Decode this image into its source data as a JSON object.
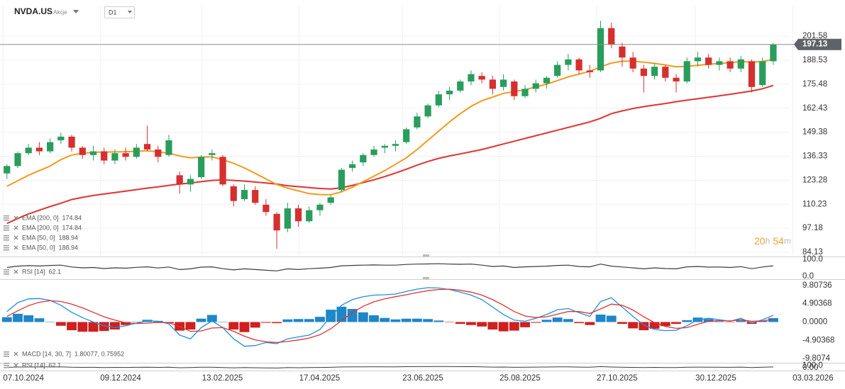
{
  "header": {
    "symbol": "NVDA.US",
    "asset_class": "Akcje",
    "interval": "D1"
  },
  "countdown": [
    "20",
    "h",
    "54",
    "m"
  ],
  "chart_data": [
    {
      "type": "candlestick",
      "x": [
        "07.10.2024",
        "14.10.2024",
        "21.10.2024",
        "28.10.2024",
        "04.11.2024",
        "11.11.2024",
        "18.11.2024",
        "25.11.2024",
        "02.12.2024",
        "09.12.2024",
        "16.12.2024",
        "23.12.2024",
        "30.12.2024",
        "06.01.2025",
        "13.01.2025",
        "20.01.2025",
        "27.01.2025",
        "03.02.2025",
        "10.02.2025",
        "17.02.2025",
        "24.02.2025",
        "03.03.2025",
        "10.03.2025",
        "17.03.2025",
        "24.03.2025",
        "31.03.2025",
        "07.04.2025",
        "14.04.2025",
        "21.04.2025",
        "28.04.2025",
        "05.05.2025",
        "12.05.2025",
        "19.05.2025",
        "26.05.2025",
        "02.06.2025",
        "09.06.2025",
        "16.06.2025",
        "23.06.2025",
        "30.06.2025",
        "07.07.2025",
        "14.07.2025",
        "21.07.2025",
        "28.07.2025",
        "04.08.2025",
        "11.08.2025",
        "18.08.2025",
        "25.08.2025",
        "01.09.2025",
        "08.09.2025",
        "15.09.2025",
        "22.09.2025",
        "29.09.2025",
        "06.10.2025",
        "13.10.2025",
        "20.10.2025",
        "27.10.2025",
        "03.11.2025",
        "10.11.2025",
        "17.11.2025",
        "24.11.2025",
        "01.12.2025",
        "08.12.2025",
        "15.12.2025",
        "22.12.2025",
        "29.12.2025",
        "05.01.2026",
        "12.01.2026",
        "19.01.2026",
        "26.01.2026",
        "02.02.2026",
        "09.02.2026",
        "16.02.2026"
      ],
      "open": [
        127,
        131,
        138,
        141,
        139,
        145,
        147,
        141,
        137,
        139,
        134,
        138,
        136,
        143,
        140,
        137,
        126,
        121,
        125,
        137,
        136,
        120,
        113,
        118,
        110,
        105,
        97,
        108,
        101,
        107,
        111,
        118,
        130,
        133,
        137,
        141,
        142,
        144,
        152,
        158,
        164,
        170,
        172,
        177,
        180,
        178,
        174,
        177,
        169,
        173,
        176,
        180,
        186,
        189,
        183,
        183,
        206,
        196,
        190,
        184,
        180,
        185,
        179,
        177,
        188,
        190,
        186,
        188,
        184,
        188,
        175,
        188
      ],
      "high": [
        132,
        139,
        143,
        144,
        146,
        149,
        148,
        142,
        142,
        141,
        140,
        141,
        143,
        153,
        142,
        148,
        128,
        126,
        137,
        140,
        137,
        121,
        121,
        120,
        113,
        106,
        111,
        110,
        109,
        111,
        115,
        130,
        134,
        138,
        142,
        143,
        145,
        152,
        160,
        165,
        172,
        174,
        178,
        183,
        182,
        180,
        181,
        178,
        175,
        178,
        180,
        188,
        192,
        190,
        186,
        210,
        209,
        198,
        193,
        186,
        187,
        186,
        181,
        190,
        193,
        192,
        190,
        190,
        191,
        189,
        190,
        198
      ],
      "low": [
        124,
        130,
        137,
        137,
        138,
        143,
        139,
        135,
        134,
        132,
        132,
        134,
        135,
        139,
        133,
        136,
        116,
        117,
        124,
        134,
        120,
        109,
        112,
        110,
        104,
        86,
        95,
        98,
        100,
        104,
        110,
        117,
        128,
        131,
        136,
        138,
        139,
        143,
        151,
        157,
        163,
        167,
        171,
        175,
        176,
        170,
        172,
        167,
        168,
        171,
        173,
        179,
        183,
        181,
        179,
        182,
        195,
        185,
        182,
        171,
        178,
        177,
        171,
        176,
        185,
        184,
        183,
        182,
        182,
        171,
        174,
        186
      ],
      "close": [
        131,
        138,
        141,
        139,
        144,
        147,
        141,
        137,
        139,
        134,
        138,
        136,
        141,
        140,
        136,
        145,
        121,
        124,
        136,
        138,
        121,
        112,
        118,
        111,
        106,
        96,
        108,
        101,
        107,
        110,
        114,
        129,
        132,
        137,
        140,
        142,
        143,
        151,
        158,
        164,
        170,
        172,
        177,
        181,
        178,
        173,
        178,
        169,
        173,
        176,
        179,
        186,
        189,
        183,
        182,
        206,
        197,
        190,
        184,
        180,
        185,
        179,
        177,
        188,
        190,
        186,
        188,
        184,
        189,
        174,
        188,
        197.13
      ],
      "up_color": "#2a9d5c",
      "down_color": "#d5302f",
      "lines": [
        {
          "name": "EMA [200, 0]",
          "color": "#e0332f",
          "values": [
            99.8,
            102.5,
            105,
            107,
            109,
            110.8,
            112.8,
            114,
            115,
            115.8,
            116.6,
            117.4,
            118.2,
            119,
            119.7,
            120.5,
            121.2,
            121.8,
            122.5,
            123.2,
            123.5,
            123.2,
            122.8,
            122.3,
            121.8,
            121.2,
            120.3,
            119.8,
            119.3,
            118.8,
            118.5,
            119.2,
            120.5,
            122,
            123.5,
            125.3,
            127.2,
            129.3,
            131.5,
            133.5,
            135.2,
            136.5,
            137.6,
            138.8,
            140,
            141.5,
            143,
            144.5,
            146,
            147.5,
            149,
            150.5,
            152,
            153.5,
            155,
            157,
            159.5,
            161,
            162.3,
            163.3,
            164.2,
            165,
            166,
            166.8,
            167.6,
            168.4,
            169.2,
            170,
            170.9,
            171.8,
            173,
            174.84
          ]
        },
        {
          "name": "EMA [50, 0]",
          "color": "#f39a1c",
          "values": [
            120,
            123,
            126,
            128.5,
            131,
            134.5,
            137,
            138,
            138.5,
            138.6,
            138.7,
            138.8,
            139,
            139.3,
            138.7,
            138,
            136.5,
            135.5,
            135.8,
            136,
            134.5,
            132.5,
            130,
            127,
            124,
            121,
            119,
            117.5,
            116,
            115.5,
            115.4,
            117,
            119.5,
            122.5,
            125.5,
            128.5,
            132,
            135.5,
            140,
            145,
            150,
            155,
            159.5,
            163.5,
            166.5,
            168.5,
            170.5,
            171.5,
            172.5,
            174,
            175.5,
            177.5,
            179.5,
            181,
            182.5,
            185,
            187,
            188,
            188,
            187.5,
            186.8,
            186,
            185,
            185.2,
            185.8,
            186.3,
            186.8,
            187.2,
            187.8,
            187.5,
            187.8,
            188.94
          ]
        }
      ],
      "xlim": [
        "05.10.2024",
        "06.04.2026"
      ],
      "xticks": [
        "07.10.2024",
        "09.12.2024",
        "13.02.2025",
        "17.04.2025",
        "23.06.2025",
        "25.08.2025",
        "27.10.2025",
        "30.12.2025",
        "03.03.2026"
      ],
      "ylim": [
        82.6,
        218.2
      ],
      "yticks": [
        201.58,
        188.53,
        175.48,
        162.43,
        149.38,
        136.33,
        123.28,
        110.23,
        97.18,
        84.13
      ],
      "grid": true
    },
    {
      "type": "line",
      "name": "RSI [14]",
      "color": "#3c3c3c",
      "values": [
        52,
        60,
        63,
        61,
        64,
        66,
        55,
        50,
        52,
        46,
        50,
        48,
        53,
        56,
        49,
        55,
        40,
        44,
        54,
        56,
        45,
        38,
        44,
        40,
        36,
        32,
        44,
        40,
        45,
        48,
        52,
        62,
        64,
        66,
        67,
        66,
        66,
        70,
        72,
        73,
        74,
        72,
        71,
        72,
        66,
        58,
        61,
        52,
        56,
        58,
        60,
        64,
        66,
        58,
        56,
        72,
        60,
        55,
        50,
        44,
        50,
        46,
        44,
        56,
        58,
        54,
        55,
        52,
        57,
        45,
        55,
        62.1
      ],
      "ylim": [
        0,
        100
      ],
      "yticks": [
        {
          "value": 100,
          "label": "100.0"
        },
        {
          "value": 0,
          "label": "0.0"
        }
      ],
      "strip_yticks": [
        {
          "value": 100,
          "label": "100.0"
        },
        {
          "value": 0,
          "label": "0.00"
        }
      ]
    },
    {
      "type": "macd",
      "name": "MACD [14, 30, 7]",
      "legend_label": "1.80077, 0.75952",
      "series": [
        {
          "color": "#1e8fe0",
          "values": [
            2.8,
            5.2,
            6.2,
            6.3,
            5.8,
            4.5,
            2.6,
            1.2,
            0,
            -1,
            -1.5,
            -1,
            -0.3,
            0.3,
            0.2,
            -0.5,
            -3.5,
            -4.5,
            -1.5,
            0.3,
            -1.5,
            -4.5,
            -6.5,
            -6.3,
            -5.5,
            -5.8,
            -4.5,
            -4,
            -3.5,
            -2,
            1.5,
            4.5,
            6,
            6.8,
            7.2,
            7.3,
            7.5,
            8.2,
            8.8,
            9.2,
            9.1,
            8.7,
            8,
            7.2,
            6,
            4,
            2,
            0.5,
            0.2,
            1,
            2,
            3.3,
            3.6,
            2.5,
            1.5,
            5.5,
            6.5,
            4,
            1.5,
            -0.8,
            -2,
            -2.3,
            -2.2,
            -1,
            0.6,
            1,
            0.6,
            0.2,
            1,
            -0.3,
            0.6,
            1.80077
          ]
        },
        {
          "color": "#e0332f",
          "values": [
            1.5,
            3,
            4.4,
            5.3,
            5.7,
            5.5,
            4.8,
            3.8,
            2.6,
            1.4,
            0.5,
            -0.2,
            -0.4,
            -0.3,
            -0.1,
            -0.2,
            -1.2,
            -2.5,
            -2.4,
            -1.6,
            -1.5,
            -2.5,
            -3.8,
            -4.8,
            -5.3,
            -5.5,
            -5.2,
            -4.8,
            -4.3,
            -3.4,
            -1.8,
            0.4,
            2.5,
            4.2,
            5.4,
            6.2,
            6.8,
            7.3,
            7.9,
            8.4,
            8.7,
            8.8,
            8.5,
            8,
            7.2,
            6,
            4.5,
            2.8,
            1.6,
            1.2,
            1.4,
            2.1,
            2.8,
            2.8,
            2.3,
            3.5,
            4.8,
            4.5,
            3.2,
            1.4,
            -0.2,
            -1.2,
            -1.7,
            -1.5,
            -0.6,
            0.2,
            0.4,
            0.3,
            0.6,
            0.2,
            0.3,
            0.75952
          ]
        }
      ],
      "histogram": {
        "up_color": "#1f86c8",
        "down_color": "#cf1f1f",
        "values": [
          1.3,
          2.2,
          1.8,
          1,
          0.1,
          -1,
          -2.2,
          -2.6,
          -2.6,
          -2.4,
          -2,
          -0.8,
          0.1,
          0.6,
          0.3,
          -0.3,
          -2.3,
          -2,
          0.9,
          1.9,
          0,
          -2,
          -2.7,
          -1.5,
          -0.2,
          -0.3,
          0.7,
          0.8,
          0.8,
          1.4,
          3.3,
          4.1,
          3.5,
          2.6,
          1.8,
          1.1,
          0.7,
          0.9,
          0.9,
          0.8,
          0.4,
          -0.1,
          -0.5,
          -0.8,
          -1.2,
          -2,
          -2.5,
          -2.3,
          -1.4,
          -0.2,
          0.6,
          1.2,
          0.8,
          -0.3,
          -0.8,
          2,
          1.7,
          -0.5,
          -1.7,
          -2.2,
          -1.8,
          -1.1,
          -0.5,
          0.5,
          1.2,
          0.8,
          0.2,
          -0.1,
          0.4,
          -0.5,
          0.3,
          1.04125
        ]
      },
      "ylim": [
        -11.3,
        11.1
      ],
      "yticks": [
        9.80736,
        4.90368,
        {
          "value": 0,
          "label": "0.0000"
        },
        -4.90368,
        -9.8074
      ]
    }
  ]
}
